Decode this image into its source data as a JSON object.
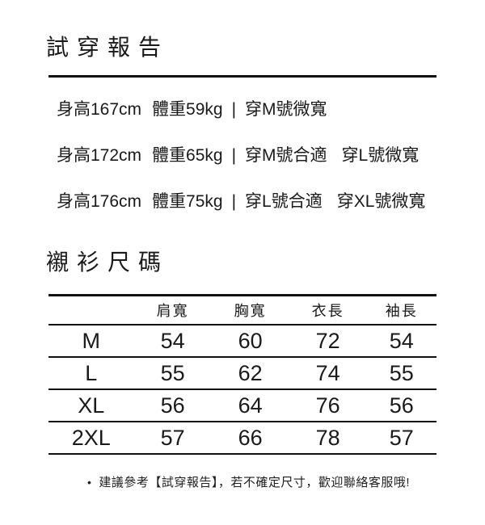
{
  "colors": {
    "background": "#ffffff",
    "text": "#1a1a1a",
    "line": "#111111"
  },
  "fit_report": {
    "title": "試穿報告",
    "separator": "|",
    "entries": [
      {
        "height": "身高167cm",
        "weight": "體重59kg",
        "fits": [
          "穿M號微寬"
        ]
      },
      {
        "height": "身高172cm",
        "weight": "體重65kg",
        "fits": [
          "穿M號合適",
          "穿L號微寬"
        ]
      },
      {
        "height": "身高176cm",
        "weight": "體重75kg",
        "fits": [
          "穿L號合適",
          "穿XL號微寬"
        ]
      }
    ]
  },
  "size_chart": {
    "title": "襯衫尺碼",
    "columns": [
      "",
      "肩寬",
      "胸寬",
      "衣長",
      "袖長"
    ],
    "rows": [
      {
        "size": "M",
        "values": [
          "54",
          "60",
          "72",
          "54"
        ]
      },
      {
        "size": "L",
        "values": [
          "55",
          "62",
          "74",
          "55"
        ]
      },
      {
        "size": "XL",
        "values": [
          "56",
          "64",
          "76",
          "56"
        ]
      },
      {
        "size": "2XL",
        "values": [
          "57",
          "66",
          "78",
          "57"
        ]
      }
    ]
  },
  "footer": {
    "bullet": "•",
    "note": "建議參考【試穿報告】，若不確定尺寸，歡迎聯絡客服哦!"
  }
}
